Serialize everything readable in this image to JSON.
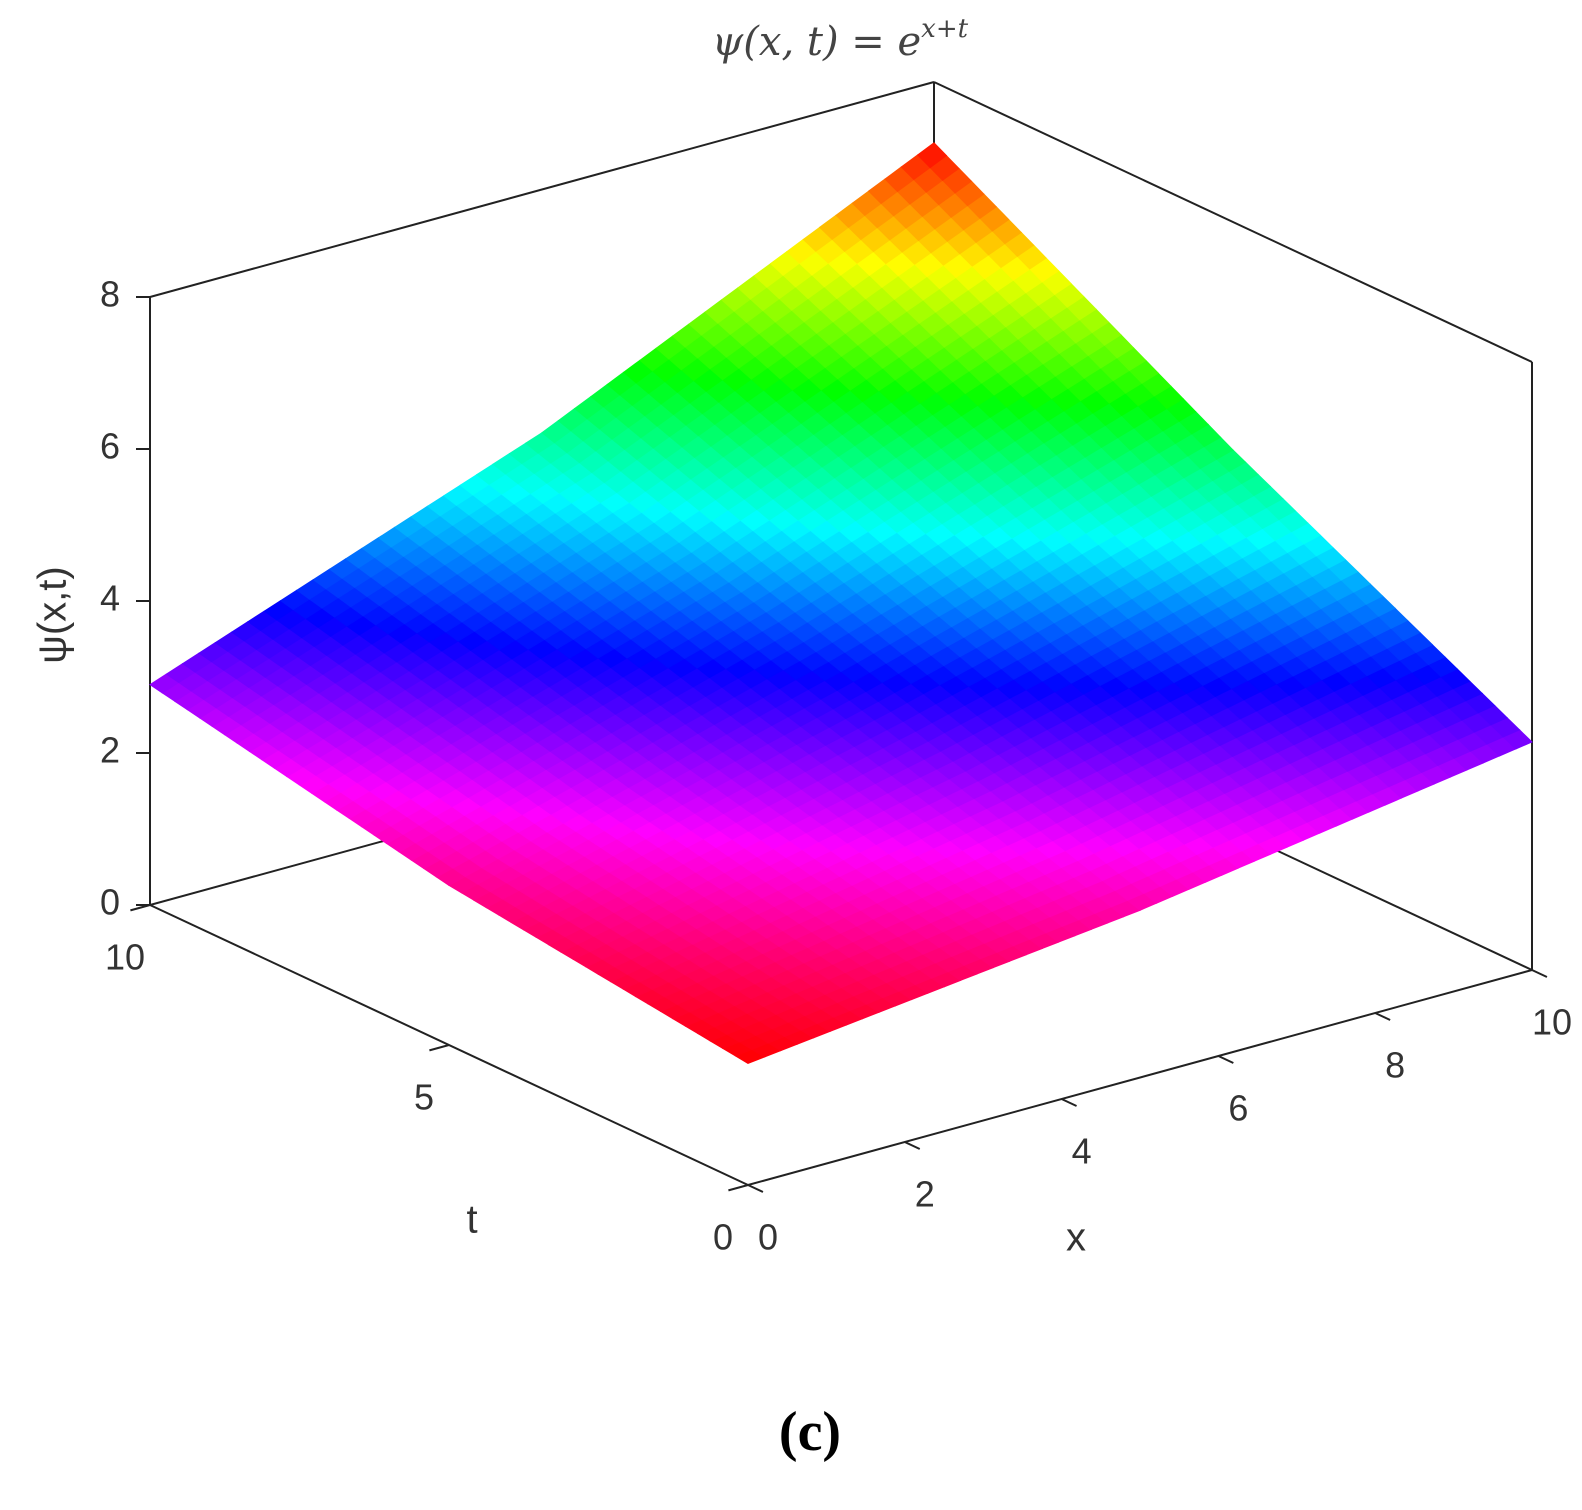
{
  "chart_data": {
    "type": "surface3d",
    "title": {
      "base": "ψ(x, t) = e",
      "exponent": "x+t"
    },
    "x_label": "x",
    "y_label": "t",
    "z_label": "ψ(x,t)",
    "x": [
      0,
      5,
      10
    ],
    "y": [
      0,
      5,
      10
    ],
    "z": [
      [
        1.6,
        2.2,
        3.0
      ],
      [
        2.1,
        3.5,
        5.0
      ],
      [
        2.9,
        4.8,
        7.2
      ]
    ],
    "xlim": [
      0,
      10
    ],
    "ylim": [
      0,
      10
    ],
    "zlim": [
      0,
      8
    ],
    "xticks": [
      0,
      2,
      4,
      6,
      8,
      10
    ],
    "yticks": [
      0,
      5,
      10
    ],
    "zticks": [
      0,
      2,
      4,
      6,
      8
    ],
    "colormap": "hsv"
  },
  "caption": "(c)"
}
